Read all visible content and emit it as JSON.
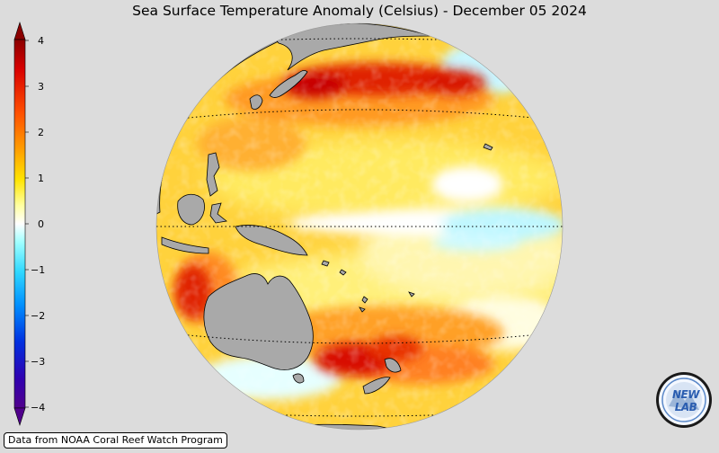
{
  "title": "Sea Surface Temperature Anomaly (Celsius) - December 05 2024",
  "colorbar": {
    "ticks": [
      "4",
      "3",
      "2",
      "1",
      "0",
      "−1",
      "−2",
      "−3",
      "−4"
    ],
    "colors_top_to_bottom": [
      "#8b0000",
      "#d80000",
      "#ff5000",
      "#ffa000",
      "#ffe400",
      "#ffffa0",
      "#ffffff",
      "#a0ffff",
      "#30d8ff",
      "#0090ff",
      "#0030e0",
      "#3000b0",
      "#50008c"
    ]
  },
  "map": {
    "projection": "orthographic globe centered on the Pacific",
    "land_color": "#a9a9a9",
    "background_color": "#dcdcdc",
    "gridlines": "dotted latitude lines"
  },
  "credit": "Data from NOAA Coral Reef Watch Program",
  "logo": {
    "text": "NEW LAB",
    "icon": "newlab-logo-icon"
  }
}
